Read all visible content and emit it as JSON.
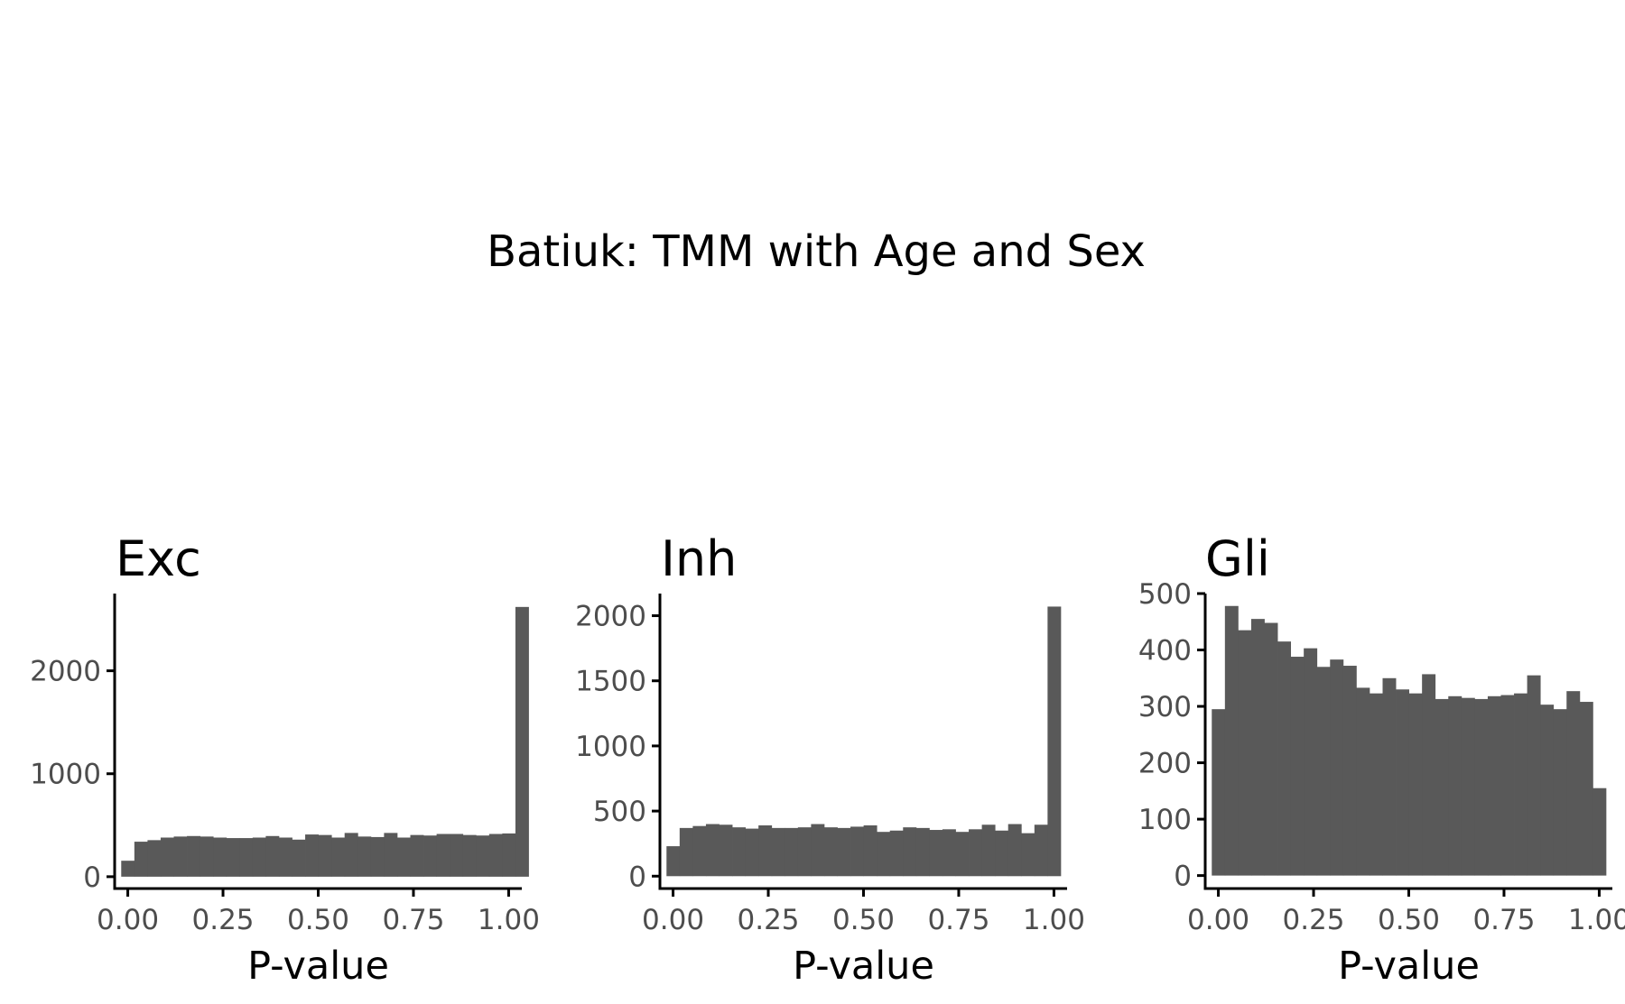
{
  "figure": {
    "title": "Batiuk: TMM with Age and Sex"
  },
  "colors": {
    "bar_fill": "#595959",
    "axis_line": "#000000",
    "tick_label": "#4d4d4d",
    "background": "#ffffff"
  },
  "chart_data": [
    {
      "type": "bar",
      "subtype": "histogram",
      "title": "Exc",
      "xlabel": "P-value",
      "ylabel": "",
      "xlim": [
        -0.0345,
        1.0345
      ],
      "ylim": [
        -115,
        2750
      ],
      "x_ticks": [
        0.0,
        0.25,
        0.5,
        0.75,
        1.0
      ],
      "x_tick_labels": [
        "0.00",
        "0.25",
        "0.50",
        "0.75",
        "1.00"
      ],
      "y_ticks": [
        0,
        1000,
        2000
      ],
      "y_tick_labels": [
        "0",
        "1000",
        "2000"
      ],
      "bin_width": 0.0345,
      "x_start": -0.01725,
      "values": [
        155,
        340,
        355,
        380,
        390,
        395,
        390,
        380,
        375,
        375,
        380,
        395,
        380,
        360,
        410,
        405,
        380,
        425,
        390,
        385,
        425,
        380,
        405,
        400,
        415,
        415,
        405,
        400,
        415,
        420,
        2620
      ],
      "grid": false,
      "legend": "none"
    },
    {
      "type": "bar",
      "subtype": "histogram",
      "title": "Inh",
      "xlabel": "P-value",
      "ylabel": "",
      "xlim": [
        -0.0345,
        1.0345
      ],
      "ylim": [
        -95,
        2170
      ],
      "x_ticks": [
        0.0,
        0.25,
        0.5,
        0.75,
        1.0
      ],
      "x_tick_labels": [
        "0.00",
        "0.25",
        "0.50",
        "0.75",
        "1.00"
      ],
      "y_ticks": [
        0,
        500,
        1000,
        1500,
        2000
      ],
      "y_tick_labels": [
        "0",
        "500",
        "1000",
        "1500",
        "2000"
      ],
      "bin_width": 0.0345,
      "x_start": -0.01725,
      "values": [
        230,
        370,
        385,
        400,
        395,
        375,
        365,
        390,
        370,
        370,
        375,
        400,
        375,
        370,
        380,
        390,
        340,
        350,
        375,
        370,
        355,
        360,
        340,
        360,
        395,
        350,
        400,
        330,
        395,
        2070
      ],
      "grid": false,
      "legend": "none"
    },
    {
      "type": "bar",
      "subtype": "histogram",
      "title": "Gli",
      "xlabel": "P-value",
      "ylabel": "",
      "xlim": [
        -0.0345,
        1.0345
      ],
      "ylim": [
        -23,
        500
      ],
      "x_ticks": [
        0.0,
        0.25,
        0.5,
        0.75,
        1.0
      ],
      "x_tick_labels": [
        "0.00",
        "0.25",
        "0.50",
        "0.75",
        "1.00"
      ],
      "y_ticks": [
        0,
        100,
        200,
        300,
        400,
        500
      ],
      "y_tick_labels": [
        "0",
        "100",
        "200",
        "300",
        "400",
        "500"
      ],
      "bin_width": 0.0345,
      "x_start": -0.01725,
      "values": [
        295,
        478,
        435,
        455,
        448,
        415,
        388,
        403,
        370,
        383,
        372,
        333,
        323,
        350,
        330,
        323,
        357,
        313,
        318,
        315,
        313,
        318,
        320,
        323,
        355,
        303,
        295,
        327,
        308,
        155
      ],
      "grid": false,
      "legend": "none"
    }
  ]
}
